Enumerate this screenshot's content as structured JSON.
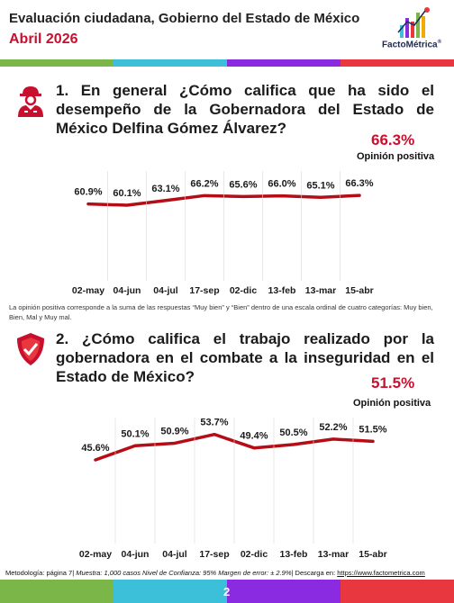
{
  "header": {
    "title": "Evaluación ciudadana, Gobierno del Estado de México",
    "subtitle": "Abril 2026",
    "logo_text": "FactoMétrica",
    "logo_mark": "®"
  },
  "colors": {
    "accent_red": "#c8102e",
    "line_red": "#b50d16",
    "band": [
      "#7ab648",
      "#3cbfd9",
      "#8a2be2",
      "#e8373e"
    ]
  },
  "questions": [
    {
      "icon": "person-icon",
      "text": "1. En general ¿Cómo califica que ha sido el desempeño de la Gobernadora del Estado de México Delfina Gómez Álvarez?",
      "opinion_pct": "66.3%",
      "opinion_label": "Opinión positiva"
    },
    {
      "icon": "shield-check-icon",
      "text": "2. ¿Cómo califica el trabajo realizado por la gobernadora en el combate a la inseguridad en el Estado de México?",
      "opinion_pct": "51.5%",
      "opinion_label": "Opinión positiva"
    }
  ],
  "note": "La opinión positiva corresponde a la suma de las respuestas “Muy bien” y “Bien” dentro de una escala ordinal de cuatro categorías: Muy bien, Bien, Mal y Muy mal.",
  "chart_data": [
    {
      "type": "line",
      "categories": [
        "02-may",
        "04-jun",
        "04-jul",
        "17-sep",
        "02-dic",
        "13-feb",
        "13-mar",
        "15-abr"
      ],
      "series": [
        {
          "values": [
            60.9,
            60.1,
            63.1,
            66.2,
            65.6,
            66.0,
            65.1,
            66.3
          ],
          "labels": [
            "60.9%",
            "60.1%",
            "63.1%",
            "66.2%",
            "65.6%",
            "66.0%",
            "65.1%",
            "66.3%"
          ]
        }
      ],
      "title": "",
      "xlabel": "",
      "ylabel": "",
      "grid": false
    },
    {
      "type": "line",
      "categories": [
        "02-may",
        "04-jun",
        "04-jul",
        "17-sep",
        "02-dic",
        "13-feb",
        "13-mar",
        "15-abr"
      ],
      "series": [
        {
          "values": [
            45.6,
            50.1,
            50.9,
            53.7,
            49.4,
            50.5,
            52.2,
            51.5
          ],
          "labels": [
            "45.6%",
            "50.1%",
            "50.9%",
            "53.7%",
            "49.4%",
            "50.5%",
            "52.2%",
            "51.5%"
          ]
        }
      ],
      "title": "",
      "xlabel": "",
      "ylabel": "",
      "grid": false
    }
  ],
  "footer": {
    "methodology": "Metodología: página 7|",
    "sample": "Muestra: 1,000 casos Nivel de Confianza: 95%  Margen de error: ± 2.9%",
    "download": "| Descarga en:",
    "url": "https://www.factometrica.com",
    "page": "2"
  }
}
